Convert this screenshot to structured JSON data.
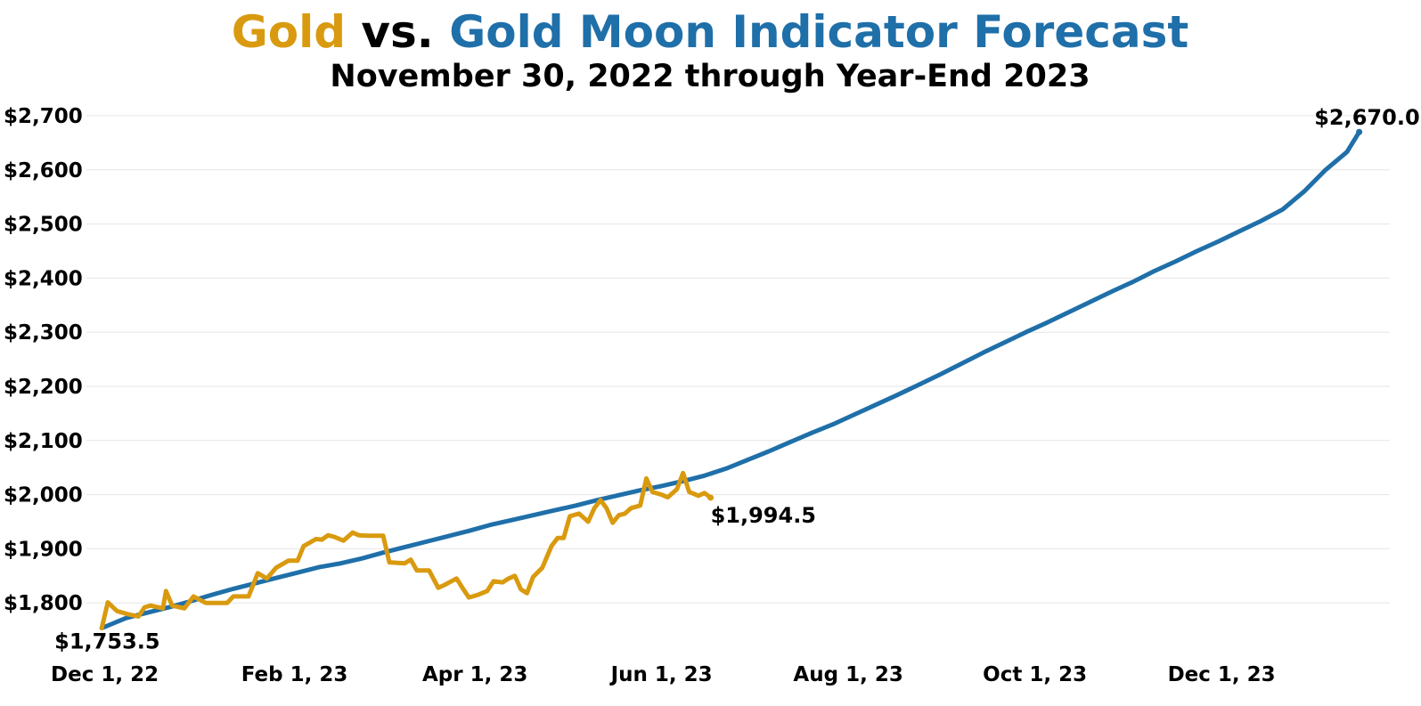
{
  "chart_data": {
    "type": "line",
    "title": {
      "part1": "Gold",
      "part2": " vs. ",
      "part3": "Gold Moon Indicator Forecast"
    },
    "subtitle": "November 30, 2022 through Year-End 2023",
    "colors": {
      "gold": "#D99A0F",
      "forecast": "#1F6FA9",
      "title_black": "#000000"
    },
    "grid": true,
    "legend": "none",
    "ylim": [
      1700,
      2700
    ],
    "xlim": [
      "2022-11-25",
      "2024-01-25"
    ],
    "y_ticks": [
      {
        "value": 1800,
        "label": "$1,800"
      },
      {
        "value": 1900,
        "label": "$1,900"
      },
      {
        "value": 2000,
        "label": "$2,000"
      },
      {
        "value": 2100,
        "label": "$2,100"
      },
      {
        "value": 2200,
        "label": "$2,200"
      },
      {
        "value": 2300,
        "label": "$2,300"
      },
      {
        "value": 2400,
        "label": "$2,400"
      },
      {
        "value": 2500,
        "label": "$2,500"
      },
      {
        "value": 2600,
        "label": "$2,600"
      },
      {
        "value": 2700,
        "label": "$2,700"
      }
    ],
    "x_ticks": [
      {
        "date": "2022-12-01",
        "label": "Dec 1, 22"
      },
      {
        "date": "2023-02-01",
        "label": "Feb 1, 23"
      },
      {
        "date": "2023-04-01",
        "label": "Apr 1, 23"
      },
      {
        "date": "2023-06-01",
        "label": "Jun 1, 23"
      },
      {
        "date": "2023-08-01",
        "label": "Aug 1, 23"
      },
      {
        "date": "2023-10-01",
        "label": "Oct 1, 23"
      },
      {
        "date": "2023-12-01",
        "label": "Dec 1, 23"
      }
    ],
    "series": [
      {
        "key": "forecast",
        "color": "#1F6FA9",
        "points": [
          [
            "2022-11-30",
            1753.5
          ],
          [
            "2022-12-08",
            1772
          ],
          [
            "2022-12-15",
            1782
          ],
          [
            "2022-12-22",
            1792
          ],
          [
            "2022-12-29",
            1803
          ],
          [
            "2023-01-05",
            1815
          ],
          [
            "2023-01-12",
            1826
          ],
          [
            "2023-01-19",
            1836
          ],
          [
            "2023-01-26",
            1846
          ],
          [
            "2023-02-02",
            1856
          ],
          [
            "2023-02-09",
            1866
          ],
          [
            "2023-02-16",
            1873
          ],
          [
            "2023-02-23",
            1882
          ],
          [
            "2023-03-02",
            1893
          ],
          [
            "2023-03-09",
            1903
          ],
          [
            "2023-03-16",
            1913
          ],
          [
            "2023-03-23",
            1923
          ],
          [
            "2023-03-30",
            1933
          ],
          [
            "2023-04-06",
            1944
          ],
          [
            "2023-04-13",
            1953
          ],
          [
            "2023-04-20",
            1962
          ],
          [
            "2023-04-27",
            1971
          ],
          [
            "2023-05-04",
            1980
          ],
          [
            "2023-05-11",
            1990
          ],
          [
            "2023-05-18",
            1999
          ],
          [
            "2023-05-25",
            2008
          ],
          [
            "2023-06-01",
            2016
          ],
          [
            "2023-06-08",
            2025
          ],
          [
            "2023-06-15",
            2035
          ],
          [
            "2023-06-22",
            2048
          ],
          [
            "2023-06-29",
            2064
          ],
          [
            "2023-07-06",
            2080
          ],
          [
            "2023-07-13",
            2097
          ],
          [
            "2023-07-20",
            2114
          ],
          [
            "2023-07-27",
            2130
          ],
          [
            "2023-08-03",
            2148
          ],
          [
            "2023-08-10",
            2166
          ],
          [
            "2023-08-17",
            2184
          ],
          [
            "2023-08-24",
            2203
          ],
          [
            "2023-08-31",
            2222
          ],
          [
            "2023-09-07",
            2242
          ],
          [
            "2023-09-14",
            2262
          ],
          [
            "2023-09-21",
            2281
          ],
          [
            "2023-09-28",
            2300
          ],
          [
            "2023-10-05",
            2318
          ],
          [
            "2023-10-12",
            2337
          ],
          [
            "2023-10-19",
            2356
          ],
          [
            "2023-10-26",
            2375
          ],
          [
            "2023-11-02",
            2393
          ],
          [
            "2023-11-09",
            2413
          ],
          [
            "2023-11-16",
            2431
          ],
          [
            "2023-11-23",
            2450
          ],
          [
            "2023-11-30",
            2468
          ],
          [
            "2023-12-07",
            2487
          ],
          [
            "2023-12-14",
            2506
          ],
          [
            "2023-12-21",
            2527
          ],
          [
            "2023-12-28",
            2560
          ],
          [
            "2024-01-04",
            2600
          ],
          [
            "2024-01-11",
            2633
          ],
          [
            "2024-01-15",
            2670.0
          ]
        ],
        "end_label": "$2,670.0"
      },
      {
        "key": "gold",
        "color": "#D99A0F",
        "points": [
          [
            "2022-11-30",
            1753.5
          ],
          [
            "2022-12-02",
            1801
          ],
          [
            "2022-12-05",
            1785
          ],
          [
            "2022-12-08",
            1780
          ],
          [
            "2022-12-12",
            1775
          ],
          [
            "2022-12-14",
            1792
          ],
          [
            "2022-12-16",
            1795
          ],
          [
            "2022-12-20",
            1790
          ],
          [
            "2022-12-21",
            1822
          ],
          [
            "2022-12-23",
            1795
          ],
          [
            "2022-12-27",
            1790
          ],
          [
            "2022-12-30",
            1812
          ],
          [
            "2023-01-03",
            1800
          ],
          [
            "2023-01-10",
            1800
          ],
          [
            "2023-01-12",
            1812
          ],
          [
            "2023-01-17",
            1812
          ],
          [
            "2023-01-20",
            1855
          ],
          [
            "2023-01-23",
            1845
          ],
          [
            "2023-01-26",
            1865
          ],
          [
            "2023-01-30",
            1878
          ],
          [
            "2023-02-02",
            1878
          ],
          [
            "2023-02-04",
            1905
          ],
          [
            "2023-02-08",
            1918
          ],
          [
            "2023-02-10",
            1917
          ],
          [
            "2023-02-12",
            1925
          ],
          [
            "2023-02-14",
            1922
          ],
          [
            "2023-02-17",
            1915
          ],
          [
            "2023-02-20",
            1930
          ],
          [
            "2023-02-22",
            1925
          ],
          [
            "2023-02-25",
            1924
          ],
          [
            "2023-03-02",
            1924
          ],
          [
            "2023-03-04",
            1875
          ],
          [
            "2023-03-09",
            1873
          ],
          [
            "2023-03-11",
            1880
          ],
          [
            "2023-03-13",
            1860
          ],
          [
            "2023-03-17",
            1860
          ],
          [
            "2023-03-20",
            1828
          ],
          [
            "2023-03-22",
            1833
          ],
          [
            "2023-03-26",
            1845
          ],
          [
            "2023-03-28",
            1827
          ],
          [
            "2023-03-30",
            1810
          ],
          [
            "2023-04-02",
            1815
          ],
          [
            "2023-04-05",
            1822
          ],
          [
            "2023-04-07",
            1840
          ],
          [
            "2023-04-10",
            1838
          ],
          [
            "2023-04-12",
            1845
          ],
          [
            "2023-04-14",
            1850
          ],
          [
            "2023-04-16",
            1825
          ],
          [
            "2023-04-18",
            1818
          ],
          [
            "2023-04-20",
            1848
          ],
          [
            "2023-04-23",
            1865
          ],
          [
            "2023-04-26",
            1905
          ],
          [
            "2023-04-28",
            1920
          ],
          [
            "2023-04-30",
            1920
          ],
          [
            "2023-05-02",
            1960
          ],
          [
            "2023-05-05",
            1965
          ],
          [
            "2023-05-08",
            1950
          ],
          [
            "2023-05-10",
            1975
          ],
          [
            "2023-05-12",
            1990
          ],
          [
            "2023-05-14",
            1975
          ],
          [
            "2023-05-16",
            1948
          ],
          [
            "2023-05-18",
            1962
          ],
          [
            "2023-05-20",
            1965
          ],
          [
            "2023-05-22",
            1975
          ],
          [
            "2023-05-25",
            1980
          ],
          [
            "2023-05-27",
            2030
          ],
          [
            "2023-05-29",
            2005
          ],
          [
            "2023-06-01",
            2000
          ],
          [
            "2023-06-03",
            1995
          ],
          [
            "2023-06-06",
            2010
          ],
          [
            "2023-06-08",
            2040
          ],
          [
            "2023-06-10",
            2005
          ],
          [
            "2023-06-13",
            1998
          ],
          [
            "2023-06-15",
            2003
          ],
          [
            "2023-06-17",
            1994.5
          ]
        ],
        "start_label": "$1,753.5",
        "end_label": "$1,994.5"
      }
    ]
  }
}
